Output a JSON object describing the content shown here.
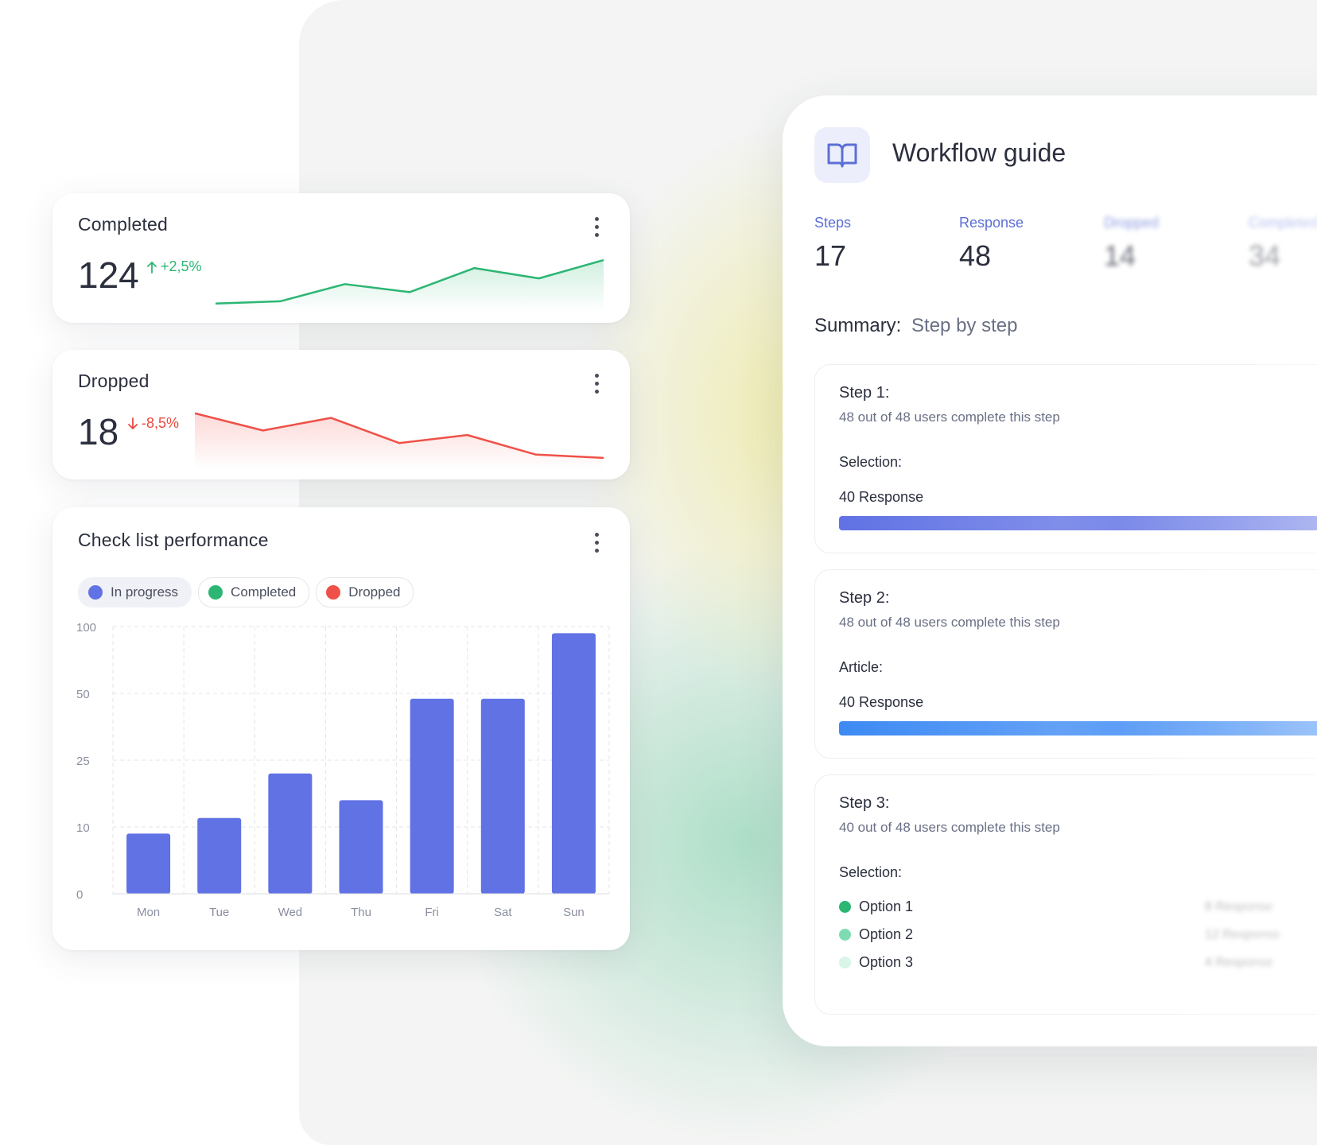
{
  "cards": {
    "completed": {
      "title": "Completed",
      "value": "124",
      "delta": "+2,5%",
      "trend": [
        10,
        14,
        44,
        30,
        72,
        54,
        86
      ]
    },
    "dropped": {
      "title": "Dropped",
      "value": "18",
      "delta": "-8,5%",
      "trend": [
        92,
        62,
        84,
        40,
        54,
        20,
        14
      ]
    }
  },
  "chart_card": {
    "title": "Check list performance",
    "legend": [
      {
        "label": "In progress",
        "color": "#6072e4"
      },
      {
        "label": "Completed",
        "color": "#2bb673"
      },
      {
        "label": "Dropped",
        "color": "#ef5148"
      }
    ]
  },
  "chart_data": {
    "type": "bar",
    "categories": [
      "Mon",
      "Tue",
      "Wed",
      "Thu",
      "Fri",
      "Sat",
      "Sun"
    ],
    "series": [
      {
        "name": "In progress",
        "values": [
          9,
          12,
          22,
          16,
          48,
          48,
          95
        ],
        "color": "#6072e4"
      }
    ],
    "y_ticks": [
      0,
      10,
      25,
      50,
      100
    ],
    "ylim": [
      0,
      100
    ],
    "y_scale": "categorical (uneven ticks 0, 10, 25, 50, 100 equally spaced)",
    "grid": true,
    "legend_position": "top-left"
  },
  "workflow": {
    "title": "Workflow guide",
    "stats": [
      {
        "label": "Steps",
        "value": "17"
      },
      {
        "label": "Response",
        "value": "48"
      },
      {
        "label": "Dropped",
        "value": "14"
      },
      {
        "label": "Completed",
        "value": "34"
      }
    ],
    "summary_label": "Summary:",
    "summary_value": "Step by step",
    "steps": [
      {
        "title": "Step 1:",
        "desc": "48 out of 48 users complete this step",
        "kind": "Selection:",
        "response": "40 Response",
        "bar_color": "#6072e4"
      },
      {
        "title": "Step 2:",
        "desc": "48 out of 48 users complete this step",
        "kind": "Article:",
        "response": "40 Response",
        "bar_color": "#3d8af4"
      },
      {
        "title": "Step 3:",
        "desc": "40 out of 48 users complete this step",
        "kind": "Selection:",
        "options": [
          {
            "label": "Option 1",
            "color": "#2bb673",
            "response": "8 Response"
          },
          {
            "label": "Option 2",
            "color": "#7fdcb0",
            "response": "12 Response"
          },
          {
            "label": "Option 3",
            "color": "#d8f5e8",
            "response": "4 Response"
          }
        ]
      }
    ]
  }
}
